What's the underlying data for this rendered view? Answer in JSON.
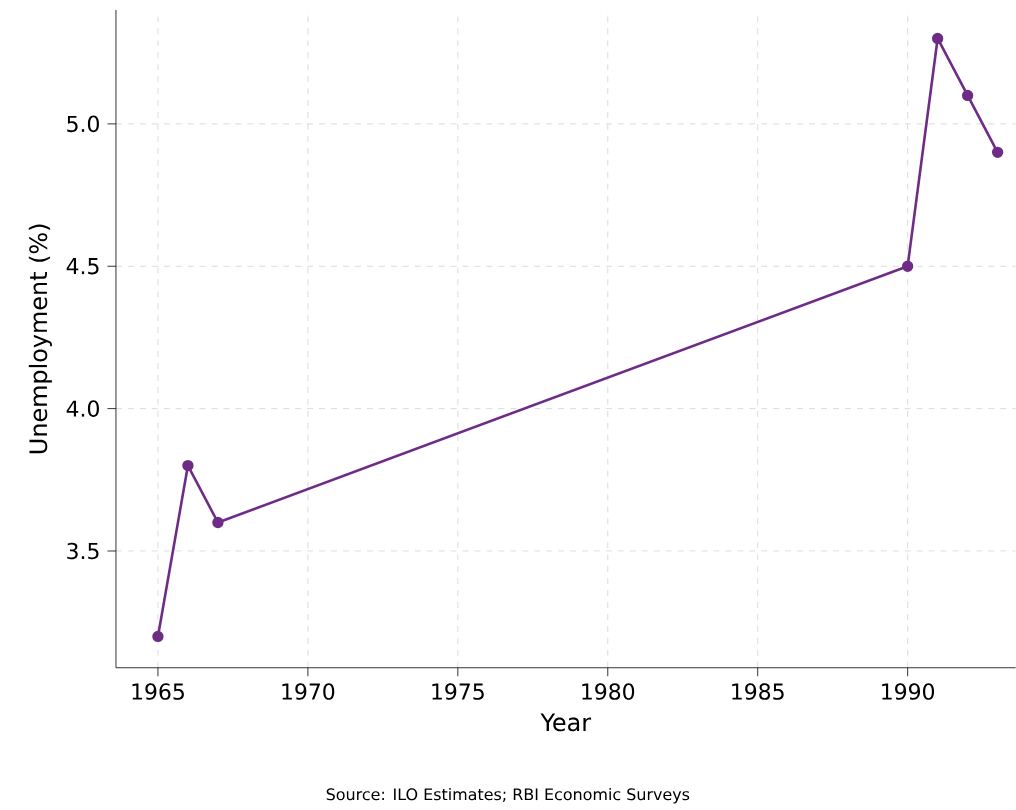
{
  "chart_data": {
    "type": "line",
    "x": [
      1965,
      1966,
      1967,
      1990,
      1991,
      1992,
      1993
    ],
    "series": [
      {
        "color": "#6f2c86",
        "values": [
          3.2,
          3.8,
          3.6,
          4.5,
          5.3,
          5.1,
          4.9
        ]
      }
    ],
    "xlabel": "Year",
    "ylabel": "Unemployment (%)",
    "xlim": [
      1963.6,
      1993.6
    ],
    "ylim": [
      3.09,
      5.4
    ],
    "xticks": [
      1965,
      1970,
      1975,
      1980,
      1985,
      1990
    ],
    "yticks": [
      {
        "value": 3.5,
        "label": "3.5"
      },
      {
        "value": 4.0,
        "label": "4.0"
      },
      {
        "value": 4.5,
        "label": "4.5"
      },
      {
        "value": 5.0,
        "label": "5.0"
      }
    ],
    "grid": true,
    "marker": "circle",
    "line_style": "solid",
    "annotations": [
      "Source: ILO Estimates; RBI Economic Surveys"
    ]
  }
}
